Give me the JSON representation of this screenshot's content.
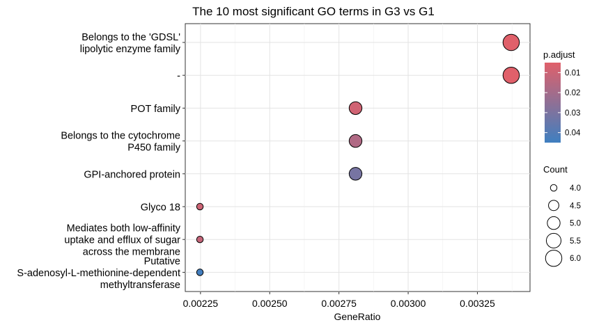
{
  "chart_data": {
    "type": "scatter",
    "title": "The 10 most significant GO terms in G3 vs G1",
    "xlabel": "GeneRatio",
    "ylabel": "",
    "xlim": [
      0.002195,
      0.00344
    ],
    "xticks": [
      "0.00225",
      "0.00250",
      "0.00275",
      "0.00300",
      "0.00325"
    ],
    "xtick_values": [
      0.00225,
      0.0025,
      0.00275,
      0.003,
      0.00325
    ],
    "grid": true,
    "categories": [
      [
        "Belongs to the 'GDSL'",
        "lipolytic enzyme family"
      ],
      [
        "-"
      ],
      [
        "POT family"
      ],
      [
        "Belongs to the cytochrome",
        "P450 family"
      ],
      [
        "GPI-anchored protein"
      ],
      [
        "Glyco 18"
      ],
      [
        "Mediates both low-affinity",
        "uptake and efflux of sugar",
        "across the membrane"
      ],
      [
        "Putative",
        "S-adenosyl-L-methionine-dependent",
        "methyltransferase"
      ]
    ],
    "points": [
      {
        "x": 0.003372,
        "count": 6,
        "p_adjust": 0.005
      },
      {
        "x": 0.003372,
        "count": 6,
        "p_adjust": 0.005
      },
      {
        "x": 0.00281,
        "count": 5,
        "p_adjust": 0.009
      },
      {
        "x": 0.00281,
        "count": 5,
        "p_adjust": 0.017
      },
      {
        "x": 0.00281,
        "count": 5,
        "p_adjust": 0.031
      },
      {
        "x": 0.002248,
        "count": 4,
        "p_adjust": 0.01
      },
      {
        "x": 0.002248,
        "count": 4,
        "p_adjust": 0.012
      },
      {
        "x": 0.002248,
        "count": 4,
        "p_adjust": 0.044
      }
    ],
    "legend_color": {
      "title": "p.adjust",
      "labels": [
        "0.01",
        "0.02",
        "0.03",
        "0.04"
      ],
      "values": [
        0.01,
        0.02,
        0.03,
        0.04
      ],
      "range": [
        0.005,
        0.045
      ],
      "low_color": "#e0606a",
      "high_color": "#3f7fc0"
    },
    "legend_size": {
      "title": "Count",
      "labels": [
        "4.0",
        "4.5",
        "5.0",
        "5.5",
        "6.0"
      ],
      "values": [
        4.0,
        4.5,
        5.0,
        5.5,
        6.0
      ]
    },
    "legend_placement": "right"
  }
}
